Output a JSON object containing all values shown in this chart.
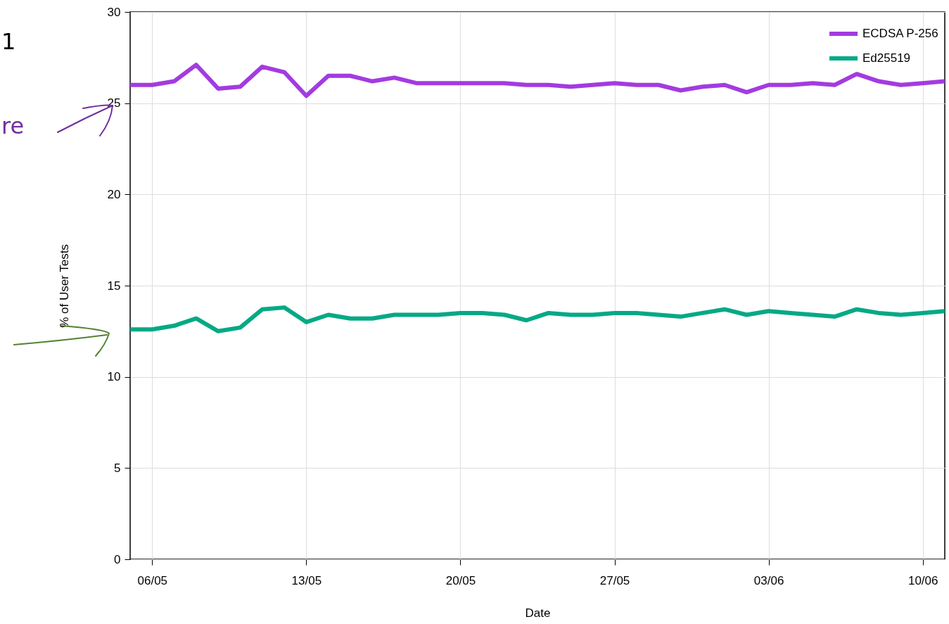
{
  "chart_data": {
    "type": "line",
    "xlabel": "Date",
    "ylabel": "% of User Tests",
    "x": [
      "--05-05",
      "--05-06",
      "--05-07",
      "--05-08",
      "--05-09",
      "--05-10",
      "--05-11",
      "--05-12",
      "--05-13",
      "--05-14",
      "--05-15",
      "--05-16",
      "--05-17",
      "--05-18",
      "--05-19",
      "--05-20",
      "--05-21",
      "--05-22",
      "--05-23",
      "--05-24",
      "--05-25",
      "--05-26",
      "--05-27",
      "--05-28",
      "--05-29",
      "--05-30",
      "--05-31",
      "--06-01",
      "--06-02",
      "--06-03",
      "--06-04",
      "--06-05",
      "--06-06",
      "--06-07",
      "--06-08",
      "--06-09",
      "--06-10",
      "--06-11"
    ],
    "series": [
      {
        "name": "ECDSA P-256",
        "color": "#a33be0",
        "values": [
          26.0,
          26.0,
          26.2,
          27.1,
          25.8,
          25.9,
          27.0,
          26.7,
          25.4,
          26.5,
          26.5,
          26.2,
          26.4,
          26.1,
          26.1,
          26.1,
          26.1,
          26.1,
          26.0,
          26.0,
          25.9,
          26.0,
          26.1,
          26.0,
          26.0,
          25.7,
          25.9,
          26.0,
          25.6,
          26.0,
          26.0,
          26.1,
          26.0,
          26.6,
          26.2,
          26.0,
          26.1,
          26.2
        ]
      },
      {
        "name": "Ed25519",
        "color": "#04a985",
        "values": [
          12.6,
          12.6,
          12.8,
          13.2,
          12.5,
          12.7,
          13.7,
          13.8,
          13.0,
          13.4,
          13.2,
          13.2,
          13.4,
          13.4,
          13.4,
          13.5,
          13.5,
          13.4,
          13.1,
          13.5,
          13.4,
          13.4,
          13.5,
          13.5,
          13.4,
          13.3,
          13.5,
          13.7,
          13.4,
          13.6,
          13.5,
          13.4,
          13.3,
          13.7,
          13.5,
          13.4,
          13.5,
          13.6
        ]
      }
    ],
    "xlim": [
      "--05-05",
      "--06-11"
    ],
    "xticks": [
      {
        "value": "--05-06",
        "label": "06/05"
      },
      {
        "value": "--05-13",
        "label": "13/05"
      },
      {
        "value": "--05-20",
        "label": "20/05"
      },
      {
        "value": "--05-27",
        "label": "27/05"
      },
      {
        "value": "--06-03",
        "label": "03/06"
      },
      {
        "value": "--06-10",
        "label": "10/06"
      }
    ],
    "ylim": [
      0,
      30
    ],
    "yticks": [
      0,
      5,
      10,
      15,
      20,
      25,
      30
    ],
    "grid": true,
    "legend": "top right",
    "annotations": [
      "1",
      "re"
    ]
  }
}
